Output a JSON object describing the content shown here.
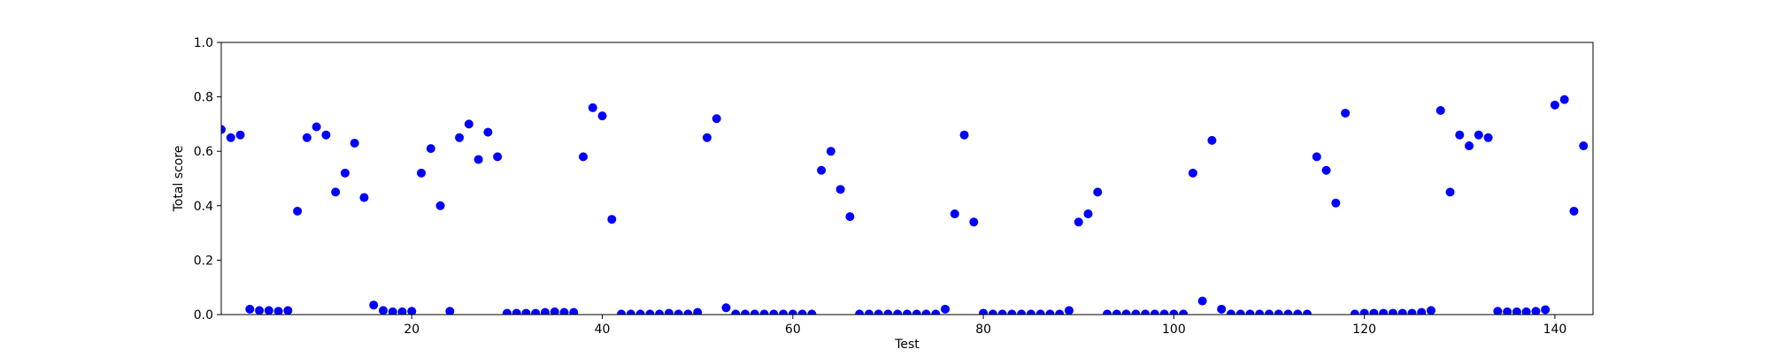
{
  "chart_data": {
    "type": "scatter",
    "xlabel": "Test",
    "ylabel": "Total score",
    "xlim": [
      0,
      144
    ],
    "ylim": [
      0,
      1.0
    ],
    "x_ticks": [
      20,
      40,
      60,
      80,
      100,
      120,
      140
    ],
    "x_tick_labels": [
      "20",
      "40",
      "60",
      "80",
      "100",
      "120",
      "140"
    ],
    "y_ticks": [
      0,
      0.2,
      0.4,
      0.6,
      0.8,
      1.0
    ],
    "y_tick_labels": [
      "0.0",
      "0.2",
      "0.4",
      "0.6",
      "0.8",
      "1.0"
    ],
    "grid": false,
    "marker_color": "#0000ff",
    "points": [
      [
        0,
        0.68
      ],
      [
        1,
        0.65
      ],
      [
        2,
        0.66
      ],
      [
        3,
        0.02
      ],
      [
        4,
        0.015
      ],
      [
        5,
        0.015
      ],
      [
        6,
        0.012
      ],
      [
        7,
        0.015
      ],
      [
        8,
        0.38
      ],
      [
        9,
        0.65
      ],
      [
        10,
        0.69
      ],
      [
        11,
        0.66
      ],
      [
        12,
        0.45
      ],
      [
        13,
        0.52
      ],
      [
        14,
        0.63
      ],
      [
        15,
        0.43
      ],
      [
        16,
        0.035
      ],
      [
        17,
        0.015
      ],
      [
        18,
        0.01
      ],
      [
        19,
        0.01
      ],
      [
        20,
        0.012
      ],
      [
        21,
        0.52
      ],
      [
        22,
        0.61
      ],
      [
        23,
        0.4
      ],
      [
        24,
        0.012
      ],
      [
        25,
        0.65
      ],
      [
        26,
        0.7
      ],
      [
        27,
        0.57
      ],
      [
        28,
        0.67
      ],
      [
        29,
        0.58
      ],
      [
        30,
        0.005
      ],
      [
        31,
        0.005
      ],
      [
        32,
        0.005
      ],
      [
        33,
        0.005
      ],
      [
        34,
        0.008
      ],
      [
        35,
        0.01
      ],
      [
        36,
        0.008
      ],
      [
        37,
        0.008
      ],
      [
        38,
        0.58
      ],
      [
        39,
        0.76
      ],
      [
        40,
        0.73
      ],
      [
        41,
        0.35
      ],
      [
        42,
        0.002
      ],
      [
        43,
        0.002
      ],
      [
        44,
        0.002
      ],
      [
        45,
        0.002
      ],
      [
        46,
        0.002
      ],
      [
        47,
        0.005
      ],
      [
        48,
        0.002
      ],
      [
        49,
        0.002
      ],
      [
        50,
        0.008
      ],
      [
        51,
        0.65
      ],
      [
        52,
        0.72
      ],
      [
        53,
        0.025
      ],
      [
        54,
        0.002
      ],
      [
        55,
        0.002
      ],
      [
        56,
        0.002
      ],
      [
        57,
        0.002
      ],
      [
        58,
        0.002
      ],
      [
        59,
        0.002
      ],
      [
        60,
        0.002
      ],
      [
        61,
        0.002
      ],
      [
        62,
        0.002
      ],
      [
        63,
        0.53
      ],
      [
        64,
        0.6
      ],
      [
        65,
        0.46
      ],
      [
        66,
        0.36
      ],
      [
        67,
        0.002
      ],
      [
        68,
        0.002
      ],
      [
        69,
        0.002
      ],
      [
        70,
        0.002
      ],
      [
        71,
        0.002
      ],
      [
        72,
        0.002
      ],
      [
        73,
        0.002
      ],
      [
        74,
        0.002
      ],
      [
        75,
        0.002
      ],
      [
        76,
        0.02
      ],
      [
        77,
        0.37
      ],
      [
        78,
        0.66
      ],
      [
        79,
        0.34
      ],
      [
        80,
        0.005
      ],
      [
        81,
        0.002
      ],
      [
        82,
        0.002
      ],
      [
        83,
        0.002
      ],
      [
        84,
        0.002
      ],
      [
        85,
        0.002
      ],
      [
        86,
        0.002
      ],
      [
        87,
        0.002
      ],
      [
        88,
        0.002
      ],
      [
        89,
        0.015
      ],
      [
        90,
        0.34
      ],
      [
        91,
        0.37
      ],
      [
        92,
        0.45
      ],
      [
        93,
        0.002
      ],
      [
        94,
        0.002
      ],
      [
        95,
        0.002
      ],
      [
        96,
        0.002
      ],
      [
        97,
        0.002
      ],
      [
        98,
        0.002
      ],
      [
        99,
        0.002
      ],
      [
        100,
        0.002
      ],
      [
        101,
        0.002
      ],
      [
        102,
        0.52
      ],
      [
        103,
        0.05
      ],
      [
        104,
        0.64
      ],
      [
        105,
        0.02
      ],
      [
        106,
        0.002
      ],
      [
        107,
        0.002
      ],
      [
        108,
        0.002
      ],
      [
        109,
        0.002
      ],
      [
        110,
        0.002
      ],
      [
        111,
        0.002
      ],
      [
        112,
        0.002
      ],
      [
        113,
        0.002
      ],
      [
        114,
        0.002
      ],
      [
        115,
        0.58
      ],
      [
        116,
        0.53
      ],
      [
        117,
        0.41
      ],
      [
        118,
        0.74
      ],
      [
        119,
        0.002
      ],
      [
        120,
        0.005
      ],
      [
        121,
        0.005
      ],
      [
        122,
        0.005
      ],
      [
        123,
        0.005
      ],
      [
        124,
        0.005
      ],
      [
        125,
        0.005
      ],
      [
        126,
        0.008
      ],
      [
        127,
        0.015
      ],
      [
        128,
        0.75
      ],
      [
        129,
        0.45
      ],
      [
        130,
        0.66
      ],
      [
        131,
        0.62
      ],
      [
        132,
        0.66
      ],
      [
        133,
        0.65
      ],
      [
        134,
        0.012
      ],
      [
        135,
        0.01
      ],
      [
        136,
        0.01
      ],
      [
        137,
        0.01
      ],
      [
        138,
        0.012
      ],
      [
        139,
        0.018
      ],
      [
        140,
        0.77
      ],
      [
        141,
        0.79
      ],
      [
        142,
        0.38
      ],
      [
        143,
        0.62
      ]
    ]
  }
}
